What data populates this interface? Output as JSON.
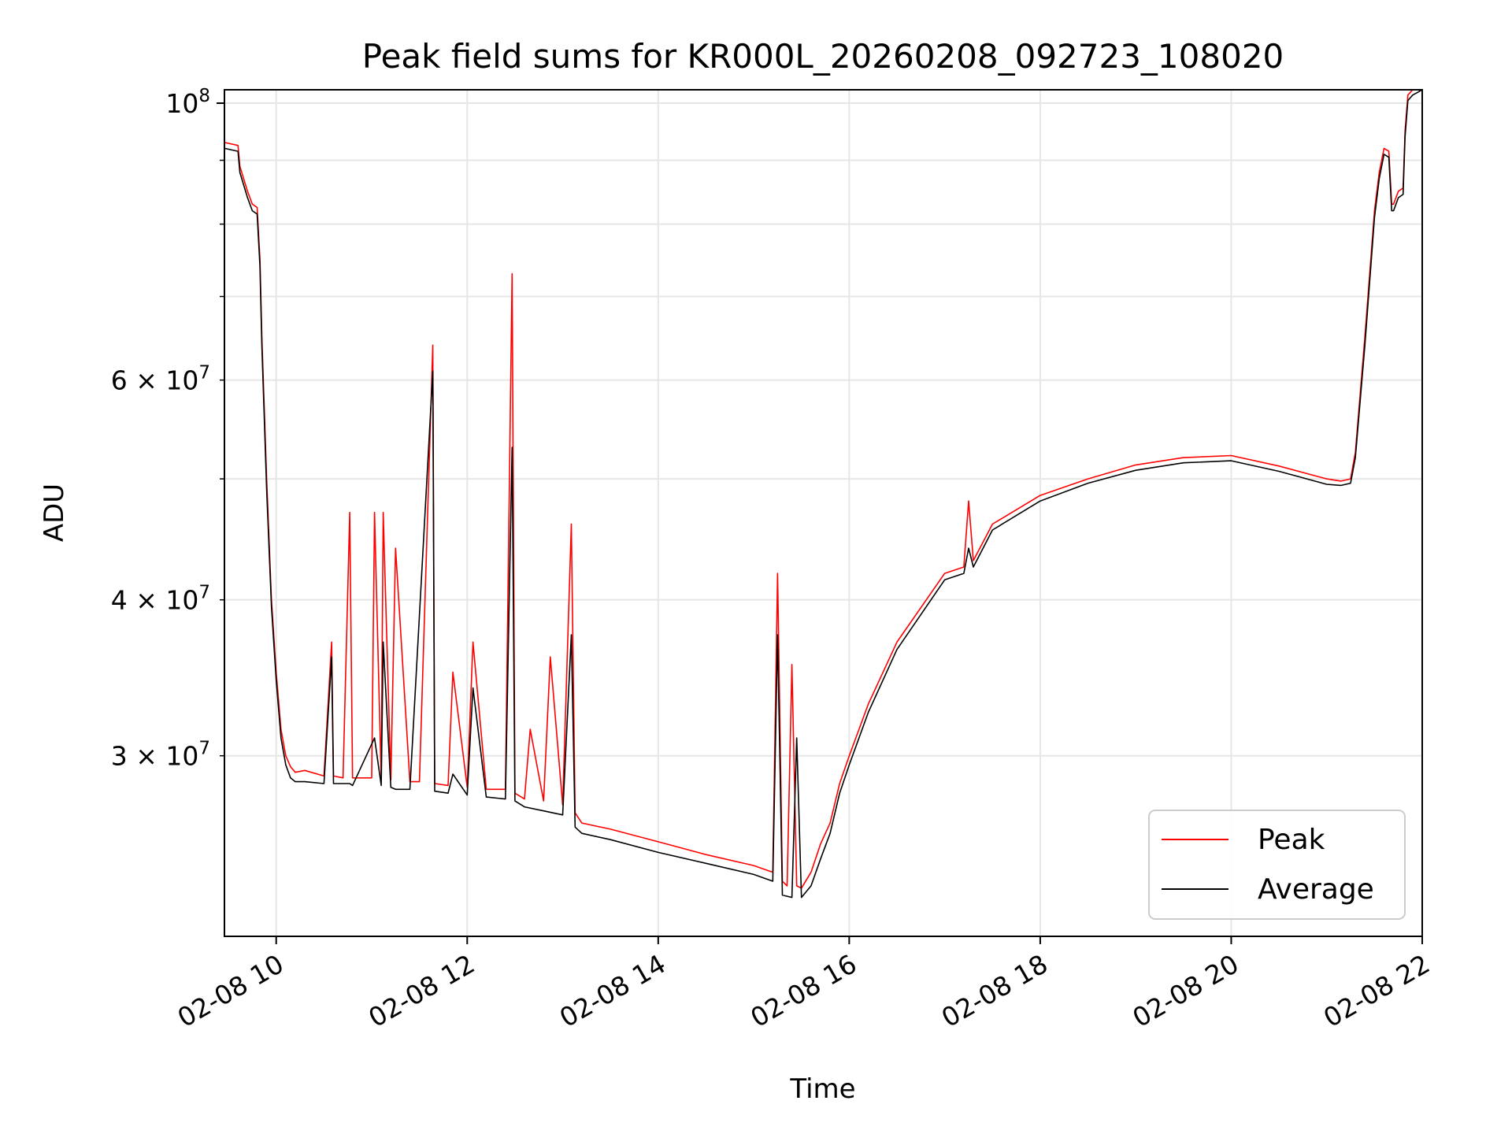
{
  "chart_data": {
    "type": "line",
    "title": "Peak field sums for KR000L_20260208_092723_108020",
    "xlabel": "Time",
    "ylabel": "ADU",
    "yscale": "log",
    "grid": true,
    "legend_position": "lower-right",
    "xlim": [
      9.458,
      22.0
    ],
    "ylim": [
      21500000,
      102500000
    ],
    "xticks": [
      {
        "value": 10,
        "label": "02-08 10"
      },
      {
        "value": 12,
        "label": "02-08 12"
      },
      {
        "value": 14,
        "label": "02-08 14"
      },
      {
        "value": 16,
        "label": "02-08 16"
      },
      {
        "value": 18,
        "label": "02-08 18"
      },
      {
        "value": 20,
        "label": "02-08 20"
      },
      {
        "value": 22,
        "label": "02-08 22"
      }
    ],
    "yticks_major": [
      {
        "value": 100000000,
        "base": "10",
        "exp": "8"
      }
    ],
    "yticks_minor": [
      {
        "value": 30000000,
        "mant": "3",
        "base": "10",
        "exp": "7"
      },
      {
        "value": 40000000,
        "mant": "4",
        "base": "10",
        "exp": "7"
      },
      {
        "value": 60000000,
        "mant": "6",
        "base": "10",
        "exp": "7"
      }
    ],
    "ygrid_extra": [
      50000000,
      70000000,
      80000000,
      90000000
    ],
    "series": [
      {
        "name": "Peak",
        "color": "#ff0000",
        "x": [
          9.46,
          9.6,
          9.62,
          9.7,
          9.75,
          9.8,
          9.83,
          9.85,
          9.9,
          9.95,
          10.0,
          10.05,
          10.1,
          10.15,
          10.2,
          10.3,
          10.5,
          10.58,
          10.6,
          10.7,
          10.77,
          10.8,
          11.0,
          11.03,
          11.1,
          11.12,
          11.2,
          11.25,
          11.4,
          11.5,
          11.64,
          11.66,
          11.8,
          11.85,
          12.0,
          12.06,
          12.2,
          12.4,
          12.47,
          12.5,
          12.6,
          12.66,
          12.8,
          12.87,
          13.0,
          13.09,
          13.13,
          13.2,
          13.5,
          14.0,
          14.5,
          15.0,
          15.2,
          15.25,
          15.3,
          15.35,
          15.4,
          15.45,
          15.5,
          15.6,
          15.7,
          15.8,
          15.9,
          16.0,
          16.2,
          16.5,
          17.0,
          17.2,
          17.25,
          17.3,
          17.5,
          18.0,
          18.5,
          19.0,
          19.5,
          20.0,
          20.5,
          21.0,
          21.15,
          21.25,
          21.3,
          21.4,
          21.5,
          21.55,
          21.6,
          21.65,
          21.68,
          21.7,
          21.75,
          21.8,
          21.82,
          21.85,
          21.9,
          21.95,
          22.0
        ],
        "y": [
          93000000,
          92500000,
          89000000,
          85000000,
          83000000,
          82500000,
          75000000,
          65000000,
          50000000,
          40000000,
          35000000,
          31500000,
          30000000,
          29400000,
          29100000,
          29200000,
          28900000,
          37000000,
          28900000,
          28800000,
          47000000,
          28800000,
          28800000,
          47000000,
          28700000,
          47000000,
          28700000,
          44000000,
          28600000,
          28600000,
          64000000,
          28500000,
          28400000,
          35000000,
          28300000,
          37000000,
          28200000,
          28200000,
          73000000,
          28000000,
          27700000,
          31500000,
          27600000,
          36000000,
          27400000,
          46000000,
          27000000,
          26500000,
          26200000,
          25600000,
          25000000,
          24500000,
          24200000,
          42000000,
          23800000,
          23600000,
          35500000,
          23600000,
          23500000,
          24200000,
          25500000,
          26500000,
          28500000,
          30000000,
          33000000,
          37000000,
          42000000,
          42500000,
          48000000,
          43000000,
          46000000,
          48500000,
          50000000,
          51300000,
          52000000,
          52200000,
          51200000,
          50000000,
          49800000,
          50000000,
          52500000,
          65000000,
          82000000,
          88000000,
          92000000,
          91500000,
          83000000,
          83000000,
          85000000,
          85500000,
          95000000,
          101500000,
          102500000,
          103000000,
          103500000
        ]
      },
      {
        "name": "Average",
        "color": "#000000",
        "x": [
          9.46,
          9.6,
          9.62,
          9.7,
          9.75,
          9.8,
          9.83,
          9.85,
          9.9,
          9.95,
          10.0,
          10.05,
          10.1,
          10.15,
          10.2,
          10.3,
          10.5,
          10.58,
          10.6,
          10.77,
          10.8,
          11.03,
          11.1,
          11.12,
          11.2,
          11.25,
          11.4,
          11.64,
          11.66,
          11.8,
          11.85,
          12.0,
          12.06,
          12.2,
          12.4,
          12.47,
          12.5,
          12.6,
          12.8,
          13.0,
          13.09,
          13.13,
          13.2,
          13.5,
          14.0,
          14.5,
          15.0,
          15.2,
          15.25,
          15.3,
          15.4,
          15.45,
          15.5,
          15.6,
          15.7,
          15.8,
          15.9,
          16.0,
          16.2,
          16.5,
          17.0,
          17.2,
          17.25,
          17.3,
          17.5,
          18.0,
          18.5,
          19.0,
          19.5,
          20.0,
          20.5,
          21.0,
          21.15,
          21.25,
          21.3,
          21.4,
          21.5,
          21.55,
          21.6,
          21.65,
          21.68,
          21.7,
          21.75,
          21.8,
          21.82,
          21.85,
          21.9,
          21.95,
          22.0
        ],
        "y": [
          92000000,
          91500000,
          88000000,
          84000000,
          82000000,
          81500000,
          74000000,
          64000000,
          49000000,
          39500000,
          34500000,
          31000000,
          29500000,
          28800000,
          28600000,
          28600000,
          28500000,
          36000000,
          28500000,
          28500000,
          28400000,
          31000000,
          28400000,
          37000000,
          28300000,
          28200000,
          28200000,
          61000000,
          28100000,
          28000000,
          29000000,
          27900000,
          34000000,
          27800000,
          27700000,
          53000000,
          27600000,
          27300000,
          27100000,
          26900000,
          37500000,
          26300000,
          26000000,
          25700000,
          25100000,
          24600000,
          24100000,
          23800000,
          37500000,
          23200000,
          23100000,
          31000000,
          23100000,
          23600000,
          24800000,
          26000000,
          28000000,
          29500000,
          32500000,
          36500000,
          41500000,
          42000000,
          44000000,
          42500000,
          45500000,
          48000000,
          49600000,
          50800000,
          51500000,
          51700000,
          50700000,
          49500000,
          49400000,
          49600000,
          52000000,
          64000000,
          81000000,
          87000000,
          91000000,
          90500000,
          82000000,
          82000000,
          84000000,
          84500000,
          94000000,
          100500000,
          101500000,
          102000000,
          102500000
        ]
      }
    ]
  }
}
